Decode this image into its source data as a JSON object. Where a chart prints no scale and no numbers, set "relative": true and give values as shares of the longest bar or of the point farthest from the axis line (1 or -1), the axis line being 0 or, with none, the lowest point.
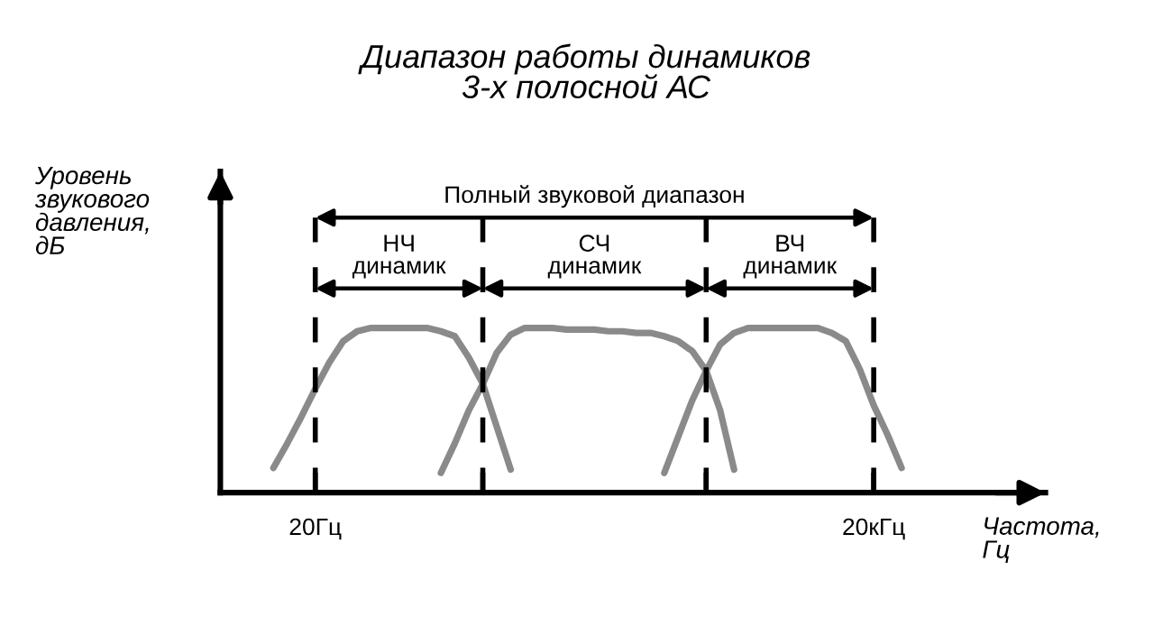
{
  "chart_data": {
    "type": "line",
    "title": "Диапазон работы динамиков\n3-х полосной АС",
    "xlabel": "Частота,\nГц",
    "relative": true,
    "categories": [
      null,
      null,
      null,
      null,
      "20Гц",
      null,
      null,
      null,
      null,
      null,
      null,
      null,
      null,
      null,
      null,
      null,
      null,
      null,
      null,
      null,
      null,
      null,
      null,
      null,
      null,
      null,
      null,
      null,
      null,
      null,
      null,
      null,
      null,
      null,
      null,
      null,
      null,
      null,
      null,
      null,
      null,
      null,
      null,
      null,
      "20кГц",
      null,
      null,
      null,
      null
    ],
    "series": [
      {
        "color": "#8a8a8a",
        "values": [
          null,
          0.15,
          0.3,
          0.46,
          0.63,
          0.79,
          0.92,
          0.98,
          1,
          1,
          1,
          1,
          1,
          0.98,
          0.95,
          0.82,
          0.66,
          0.4,
          0.14,
          null,
          null,
          null,
          null,
          null,
          null,
          null,
          null,
          null,
          null,
          null,
          null,
          null,
          null,
          null,
          null,
          null,
          null,
          null,
          null,
          null,
          null,
          null,
          null,
          null,
          null,
          null,
          null,
          null,
          null
        ]
      },
      {
        "color": "#8a8a8a",
        "values": [
          null,
          null,
          null,
          null,
          null,
          null,
          null,
          null,
          null,
          null,
          null,
          null,
          null,
          0.12,
          0.3,
          0.5,
          0.66,
          0.85,
          0.96,
          1,
          1,
          1,
          0.99,
          0.99,
          0.99,
          0.98,
          0.98,
          0.97,
          0.97,
          0.95,
          0.92,
          0.86,
          0.74,
          0.5,
          0.14,
          null,
          null,
          null,
          null,
          null,
          null,
          null,
          null,
          null,
          null,
          null,
          null,
          null,
          null
        ]
      },
      {
        "color": "#8a8a8a",
        "values": [
          null,
          null,
          null,
          null,
          null,
          null,
          null,
          null,
          null,
          null,
          null,
          null,
          null,
          null,
          null,
          null,
          null,
          null,
          null,
          null,
          null,
          null,
          null,
          null,
          null,
          null,
          null,
          null,
          null,
          0.12,
          0.34,
          0.56,
          0.74,
          0.9,
          0.97,
          1,
          1,
          1,
          1,
          1,
          1,
          0.97,
          0.92,
          0.75,
          0.53,
          0.35,
          0.15,
          null,
          null
        ]
      }
    ],
    "annotations": [
      "Уровень\nзвукового\nдавления,\nдБ",
      "Полный звуковой диапазон",
      "НЧ\nдинамик",
      "СЧ\nдинамик",
      "ВЧ\nдинамик"
    ],
    "grid": "x",
    "marker": "none",
    "line_style": "solid"
  }
}
